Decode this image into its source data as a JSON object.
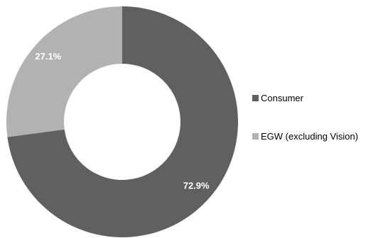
{
  "chart_data": {
    "type": "pie",
    "title": "",
    "categories": [
      "Consumer",
      "EGW (excluding Vision)"
    ],
    "values": [
      72.9,
      27.1
    ],
    "value_labels": [
      "72.9%",
      "27.1%"
    ],
    "colors": [
      "#606060",
      "#b2b2b2"
    ],
    "legend_position": "right"
  }
}
